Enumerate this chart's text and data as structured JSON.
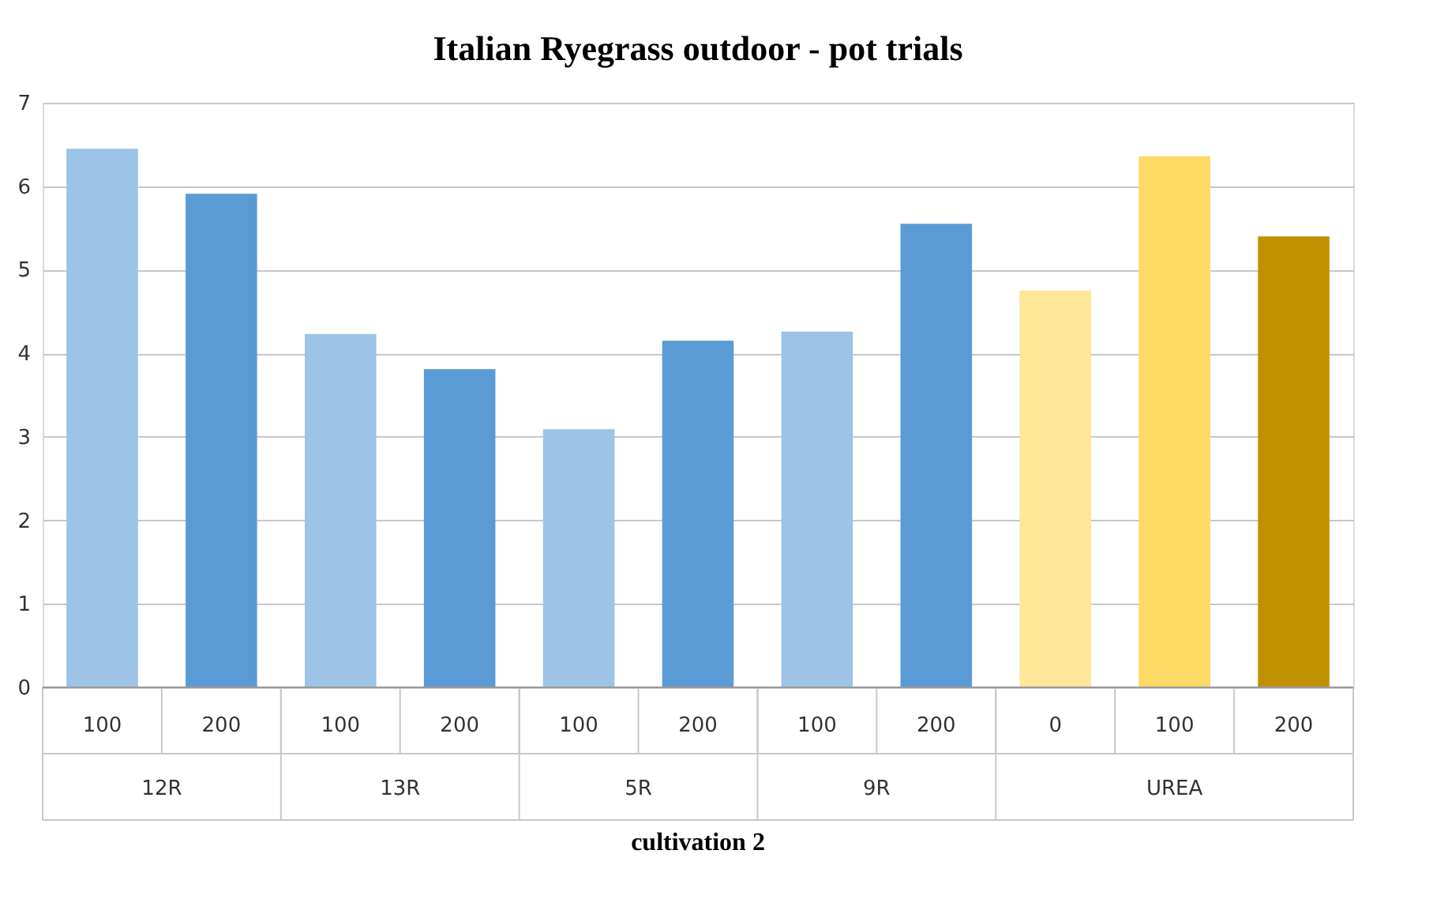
{
  "chart_data": {
    "type": "bar",
    "title": "Italian Ryegrass outdoor - pot trials",
    "xlabel": "cultivation 2",
    "categories": [
      "100",
      "200",
      "100",
      "200",
      "100",
      "200",
      "100",
      "200",
      "0",
      "100",
      "200"
    ],
    "values": [
      6.45,
      5.91,
      4.23,
      3.81,
      3.09,
      4.15,
      4.26,
      5.55,
      4.75,
      6.36,
      5.4
    ],
    "colors": [
      "#9dc3e6",
      "#5b9bd5",
      "#9dc3e6",
      "#5b9bd5",
      "#9dc3e6",
      "#5b9bd5",
      "#9dc3e6",
      "#5b9bd5",
      "#ffe699",
      "#ffd966",
      "#bf9000"
    ],
    "annotations": [
      "12R",
      "13R",
      "5R",
      "9R",
      "UREA"
    ],
    "ylim": [
      0,
      7
    ],
    "yticks": [
      0,
      1,
      2,
      3,
      4,
      5,
      6,
      7
    ],
    "grid": "y"
  }
}
